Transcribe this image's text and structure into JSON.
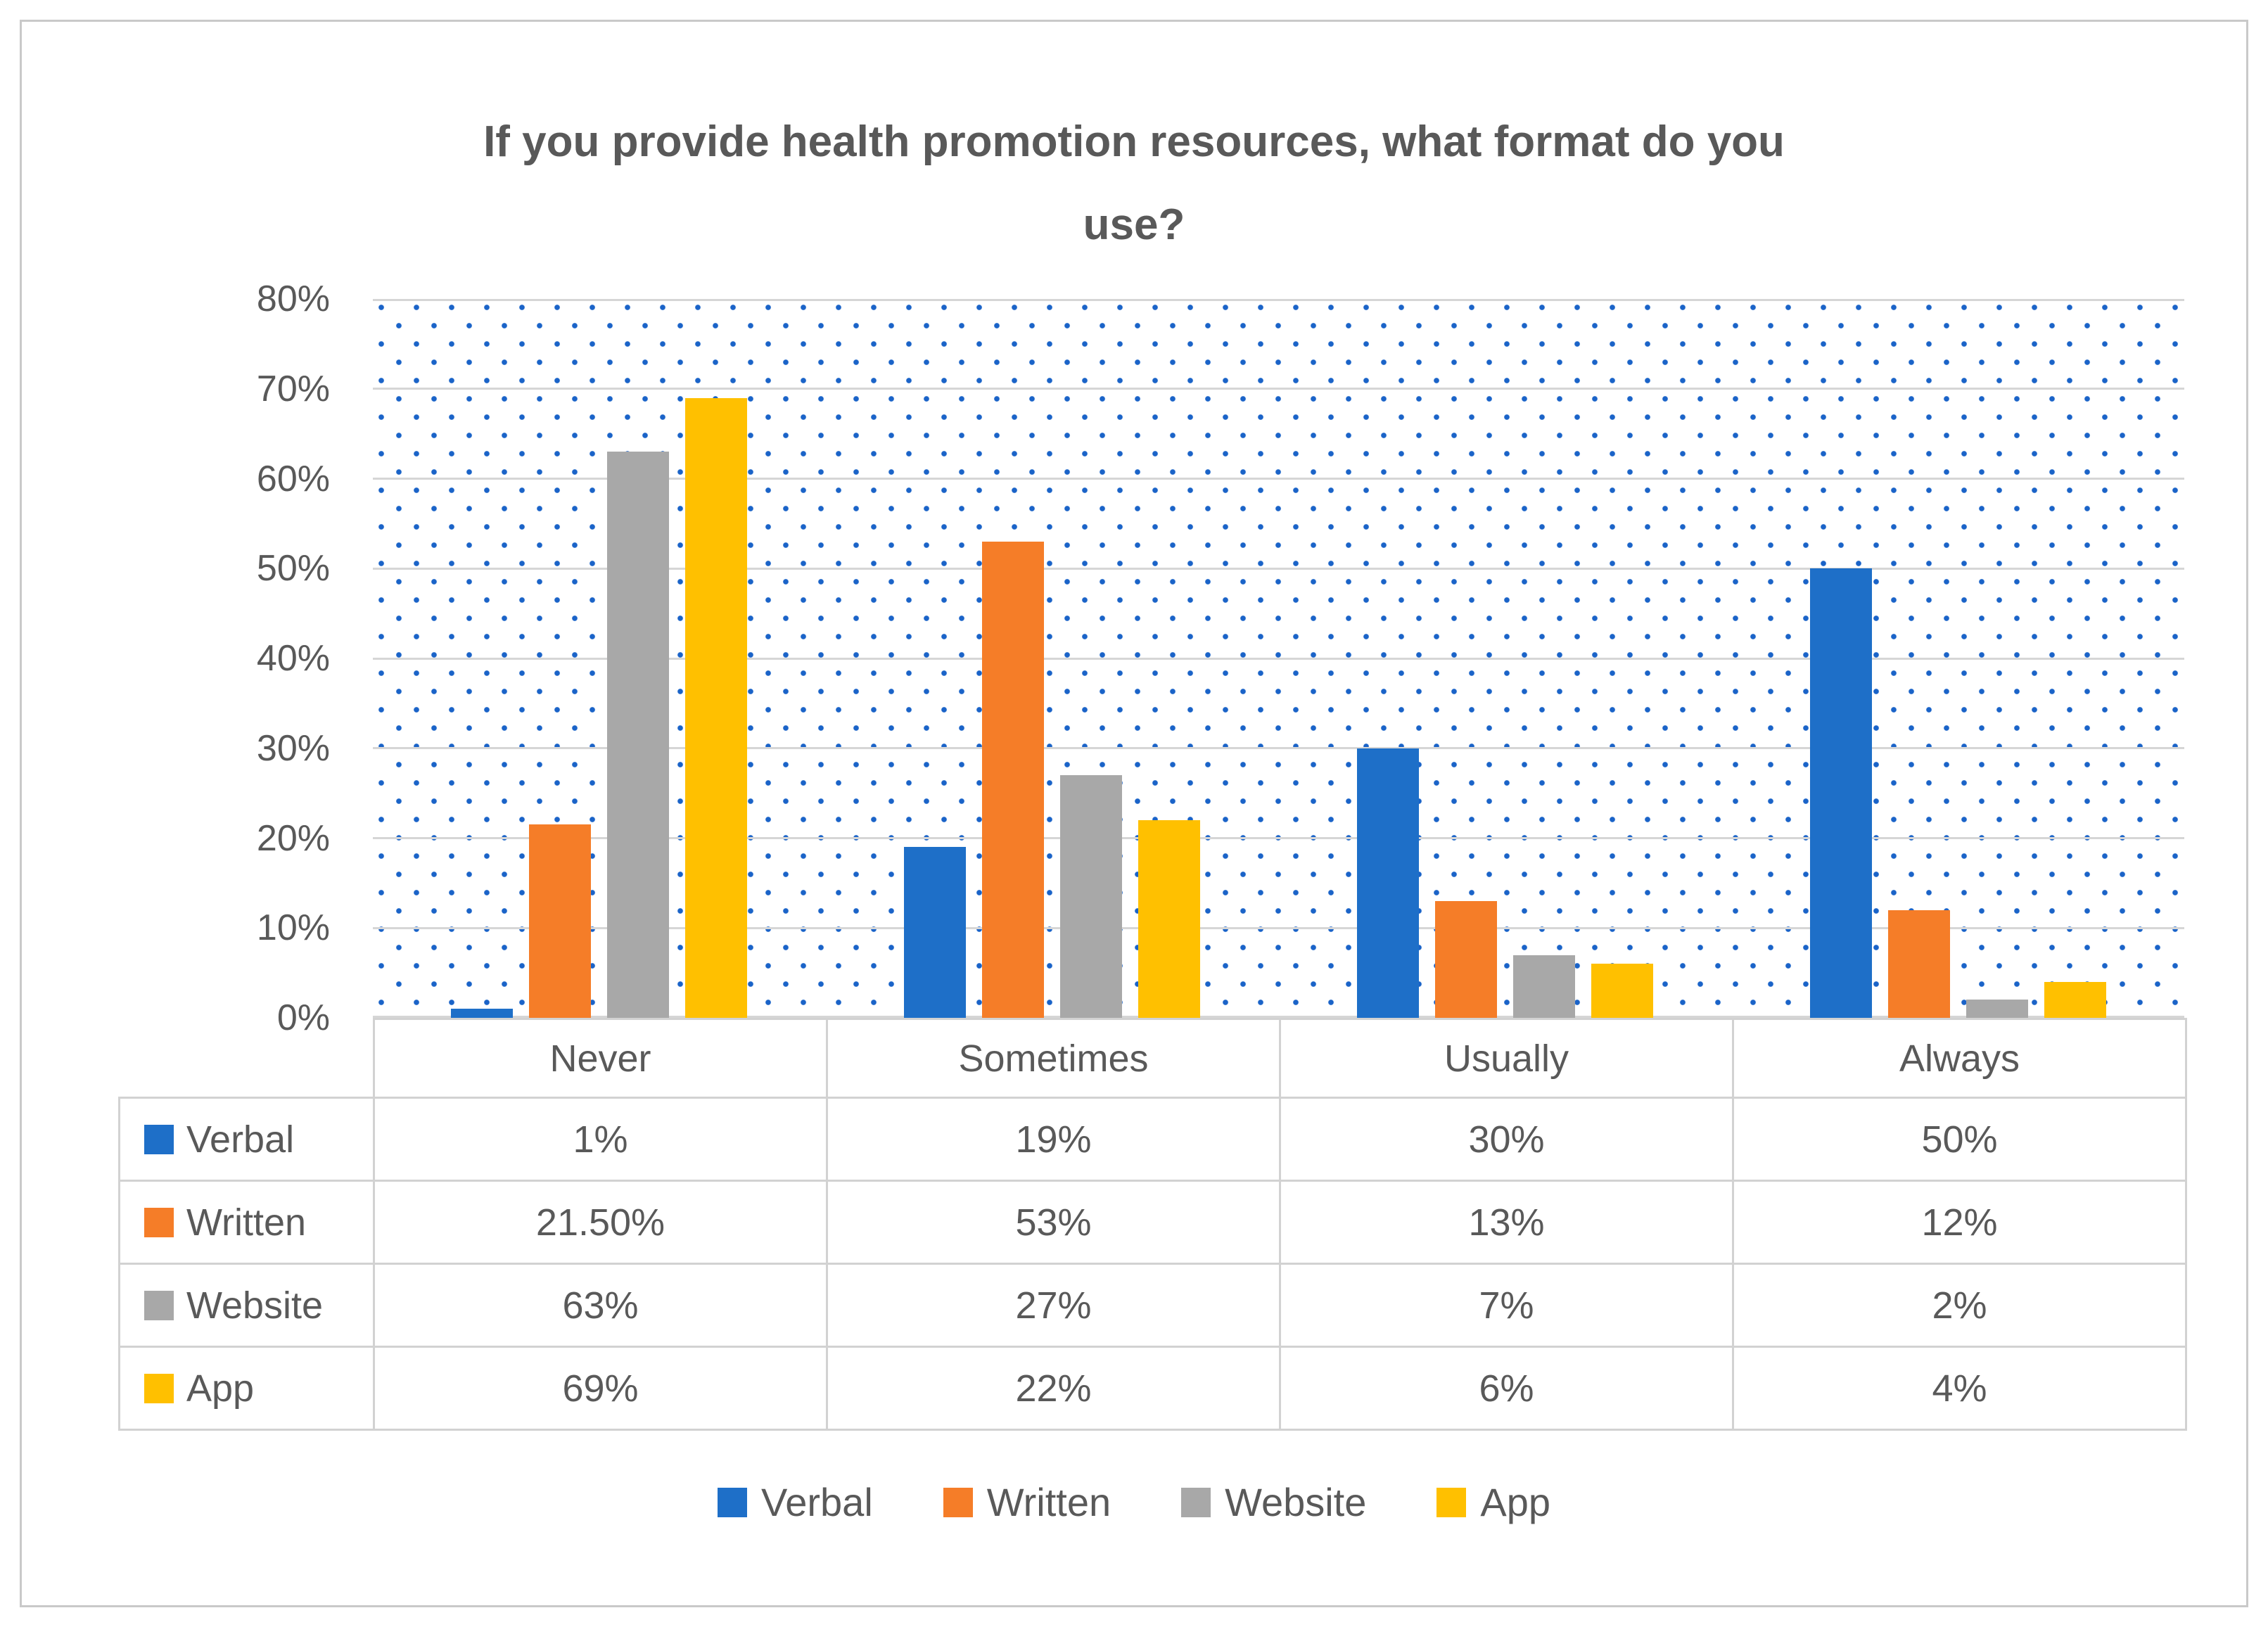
{
  "title_lines": [
    "If you provide health promotion resources, what format do you",
    "use?"
  ],
  "chart_data": {
    "type": "bar",
    "title": "If you provide health promotion resources, what format do you use?",
    "categories": [
      "Never",
      "Sometimes",
      "Usually",
      "Always"
    ],
    "series": [
      {
        "name": "Verbal",
        "color": "#1e6fc8",
        "values": [
          1,
          19,
          30,
          50
        ],
        "labels": [
          "1%",
          "19%",
          "30%",
          "50%"
        ]
      },
      {
        "name": "Written",
        "color": "#f57d28",
        "values": [
          21.5,
          53,
          13,
          12
        ],
        "labels": [
          "21.50%",
          "53%",
          "13%",
          "12%"
        ]
      },
      {
        "name": "Website",
        "color": "#a8a8a8",
        "values": [
          63,
          27,
          7,
          2
        ],
        "labels": [
          "63%",
          "27%",
          "7%",
          "2%"
        ]
      },
      {
        "name": "App",
        "color": "#ffc000",
        "values": [
          69,
          22,
          6,
          4
        ],
        "labels": [
          "69%",
          "22%",
          "6%",
          "4%"
        ]
      }
    ],
    "y_axis": {
      "min": 0,
      "max": 80,
      "step": 10,
      "tick_labels": [
        "0%",
        "10%",
        "20%",
        "30%",
        "40%",
        "50%",
        "60%",
        "70%",
        "80%"
      ]
    },
    "grid": true,
    "plot_background": "blue-dot-pattern",
    "legend_position": "bottom"
  },
  "table": {
    "header": [
      "Never",
      "Sometimes",
      "Usually",
      "Always"
    ],
    "rows": [
      {
        "label": "Verbal",
        "color": "#1e6fc8",
        "cells": [
          "1%",
          "19%",
          "30%",
          "50%"
        ]
      },
      {
        "label": "Written",
        "color": "#f57d28",
        "cells": [
          "21.50%",
          "53%",
          "13%",
          "12%"
        ]
      },
      {
        "label": "Website",
        "color": "#a8a8a8",
        "cells": [
          "63%",
          "27%",
          "7%",
          "2%"
        ]
      },
      {
        "label": "App",
        "color": "#ffc000",
        "cells": [
          "69%",
          "22%",
          "6%",
          "4%"
        ]
      }
    ]
  },
  "legend": {
    "items": [
      {
        "label": "Verbal",
        "color": "#1e6fc8"
      },
      {
        "label": "Written",
        "color": "#f57d28"
      },
      {
        "label": "Website",
        "color": "#a8a8a8"
      },
      {
        "label": "App",
        "color": "#ffc000"
      }
    ]
  },
  "colors": {
    "text": "#595959",
    "gridline": "#d6d6d6",
    "dot_pattern": "#1a63c8",
    "table_border": "#d2d2d2"
  }
}
